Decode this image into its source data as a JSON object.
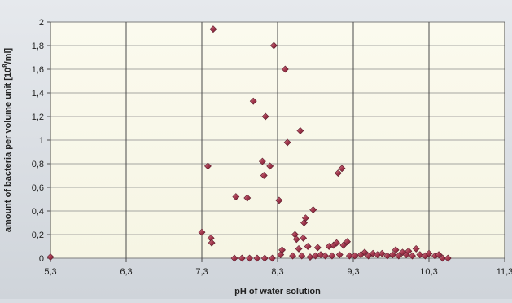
{
  "chart_data": {
    "type": "scatter",
    "xlabel": "pH of water solution",
    "ylabel_main": "amount of bacteria per volume unit [10",
    "ylabel_sup": "8",
    "ylabel_end": "/ml]",
    "xlim": [
      5.3,
      11.3
    ],
    "ylim": [
      0,
      2
    ],
    "x_ticks": [
      {
        "value": 5.3,
        "label": "5,3"
      },
      {
        "value": 6.3,
        "label": "6,3"
      },
      {
        "value": 7.3,
        "label": "7,3"
      },
      {
        "value": 8.3,
        "label": "8,3"
      },
      {
        "value": 9.3,
        "label": "9,3"
      },
      {
        "value": 10.3,
        "label": "10,3"
      },
      {
        "value": 11.3,
        "label": "11,3"
      }
    ],
    "y_ticks": [
      {
        "value": 0,
        "label": "0"
      },
      {
        "value": 0.2,
        "label": "0,2"
      },
      {
        "value": 0.4,
        "label": "0,4"
      },
      {
        "value": 0.6,
        "label": "0,6"
      },
      {
        "value": 0.8,
        "label": "0,8"
      },
      {
        "value": 1.0,
        "label": "1"
      },
      {
        "value": 1.2,
        "label": "1,2"
      },
      {
        "value": 1.4,
        "label": "1,4"
      },
      {
        "value": 1.6,
        "label": "1,6"
      },
      {
        "value": 1.8,
        "label": "1,8"
      },
      {
        "value": 2.0,
        "label": "2"
      }
    ],
    "grid": {
      "vertical": true,
      "horizontal": true
    },
    "marker": {
      "shape": "diamond",
      "color": "#a5384e"
    },
    "points": [
      [
        5.3,
        0.01
      ],
      [
        7.3,
        0.22
      ],
      [
        7.38,
        0.78
      ],
      [
        7.42,
        0.17
      ],
      [
        7.43,
        0.13
      ],
      [
        7.45,
        1.94
      ],
      [
        7.73,
        0.0
      ],
      [
        7.83,
        0.0
      ],
      [
        7.93,
        0.0
      ],
      [
        8.03,
        0.0
      ],
      [
        8.13,
        0.0
      ],
      [
        8.23,
        0.0
      ],
      [
        7.75,
        0.52
      ],
      [
        7.9,
        0.51
      ],
      [
        7.98,
        1.33
      ],
      [
        8.1,
        0.82
      ],
      [
        8.12,
        0.7
      ],
      [
        8.14,
        1.2
      ],
      [
        8.2,
        0.78
      ],
      [
        8.25,
        1.8
      ],
      [
        8.32,
        0.49
      ],
      [
        8.34,
        0.03
      ],
      [
        8.36,
        0.07
      ],
      [
        8.4,
        1.6
      ],
      [
        8.43,
        0.98
      ],
      [
        8.5,
        0.02
      ],
      [
        8.53,
        0.2
      ],
      [
        8.55,
        0.16
      ],
      [
        8.58,
        0.08
      ],
      [
        8.6,
        1.08
      ],
      [
        8.62,
        0.02
      ],
      [
        8.64,
        0.17
      ],
      [
        8.65,
        0.3
      ],
      [
        8.67,
        0.34
      ],
      [
        8.7,
        0.1
      ],
      [
        8.73,
        0.01
      ],
      [
        8.77,
        0.41
      ],
      [
        8.8,
        0.02
      ],
      [
        8.83,
        0.09
      ],
      [
        8.87,
        0.03
      ],
      [
        8.93,
        0.02
      ],
      [
        8.98,
        0.1
      ],
      [
        9.02,
        0.02
      ],
      [
        9.04,
        0.11
      ],
      [
        9.08,
        0.13
      ],
      [
        9.1,
        0.72
      ],
      [
        9.12,
        0.03
      ],
      [
        9.15,
        0.76
      ],
      [
        9.17,
        0.11
      ],
      [
        9.22,
        0.14
      ],
      [
        9.25,
        0.02
      ],
      [
        9.32,
        0.02
      ],
      [
        9.4,
        0.03
      ],
      [
        9.45,
        0.05
      ],
      [
        9.5,
        0.02
      ],
      [
        9.56,
        0.04
      ],
      [
        9.62,
        0.03
      ],
      [
        9.68,
        0.04
      ],
      [
        9.75,
        0.02
      ],
      [
        9.82,
        0.03
      ],
      [
        9.86,
        0.07
      ],
      [
        9.9,
        0.02
      ],
      [
        9.95,
        0.05
      ],
      [
        10.0,
        0.03
      ],
      [
        10.03,
        0.06
      ],
      [
        10.08,
        0.02
      ],
      [
        10.13,
        0.08
      ],
      [
        10.18,
        0.03
      ],
      [
        10.25,
        0.02
      ],
      [
        10.3,
        0.04
      ],
      [
        10.38,
        0.02
      ],
      [
        10.43,
        0.03
      ],
      [
        10.48,
        0.0
      ],
      [
        10.55,
        0.0
      ]
    ]
  }
}
